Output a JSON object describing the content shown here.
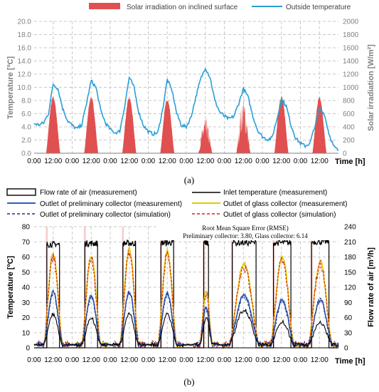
{
  "chart_data": [
    {
      "type": "line",
      "panel_label": "(a)",
      "legend": [
        "Solar irradiation on inclined surface",
        "Outside temperature"
      ],
      "ylabel": "Temperature [ºC]",
      "y2label": "Solar irradiation [W/m²]",
      "xlabel": "Time [h]",
      "x_tick_labels": [
        "0:00",
        "12:00",
        "0:00",
        "12:00",
        "0:00",
        "12:00",
        "0:00",
        "12:00",
        "0:00",
        "12:00",
        "0:00",
        "12:00",
        "0:00",
        "12:00",
        "0:00",
        "12:00"
      ],
      "y_ticks": [
        "0.0",
        "2.0",
        "4.0",
        "6.0",
        "8.0",
        "10.0",
        "12.0",
        "14.0",
        "16.0",
        "18.0",
        "20.0"
      ],
      "y2_ticks": [
        "0",
        "200",
        "400",
        "600",
        "800",
        "1000",
        "1200",
        "1400",
        "1600",
        "1800",
        "2000"
      ],
      "ylim": [
        0,
        20
      ],
      "y2lim": [
        0,
        2000
      ],
      "x_hours": [
        0,
        192
      ],
      "colors": {
        "solar": "#e05050",
        "temperature": "#2a9fd6"
      },
      "series": [
        {
          "name": "Solar irradiation on inclined surface",
          "axis": "right",
          "peaks": [
            {
              "hour": 12,
              "peak": 870,
              "width": 4.5,
              "ragged": false
            },
            {
              "hour": 36,
              "peak": 870,
              "width": 4.5,
              "ragged": false
            },
            {
              "hour": 60,
              "peak": 860,
              "width": 4.5,
              "ragged": false
            },
            {
              "hour": 84,
              "peak": 840,
              "width": 4.5,
              "ragged": false
            },
            {
              "hour": 108,
              "peak": 550,
              "width": 4.5,
              "ragged": true
            },
            {
              "hour": 132,
              "peak": 880,
              "width": 4.5,
              "ragged": true
            },
            {
              "hour": 156,
              "peak": 880,
              "width": 4.5,
              "ragged": false
            },
            {
              "hour": 180,
              "peak": 860,
              "width": 4.5,
              "ragged": false
            }
          ]
        },
        {
          "name": "Outside temperature",
          "axis": "left",
          "points": [
            [
              0,
              4.5
            ],
            [
              3,
              4.3
            ],
            [
              6,
              4.6
            ],
            [
              9,
              6.0
            ],
            [
              12,
              10.5
            ],
            [
              15,
              9.8
            ],
            [
              18,
              6.8
            ],
            [
              21,
              5.0
            ],
            [
              24,
              4.2
            ],
            [
              27,
              3.7
            ],
            [
              30,
              4.3
            ],
            [
              33,
              7.5
            ],
            [
              36,
              11.0
            ],
            [
              39,
              10.0
            ],
            [
              42,
              6.5
            ],
            [
              45,
              4.6
            ],
            [
              48,
              3.6
            ],
            [
              51,
              3.1
            ],
            [
              54,
              3.3
            ],
            [
              57,
              7.0
            ],
            [
              60,
              11.5
            ],
            [
              63,
              10.0
            ],
            [
              66,
              6.2
            ],
            [
              69,
              4.2
            ],
            [
              72,
              3.3
            ],
            [
              75,
              2.9
            ],
            [
              78,
              3.1
            ],
            [
              81,
              6.5
            ],
            [
              84,
              11.2
            ],
            [
              87,
              9.5
            ],
            [
              90,
              6.0
            ],
            [
              93,
              4.2
            ],
            [
              96,
              4.0
            ],
            [
              99,
              5.5
            ],
            [
              102,
              8.5
            ],
            [
              105,
              11.2
            ],
            [
              108,
              13.0
            ],
            [
              111,
              11.5
            ],
            [
              114,
              8.0
            ],
            [
              117,
              6.3
            ],
            [
              120,
              5.6
            ],
            [
              123,
              5.2
            ],
            [
              126,
              5.6
            ],
            [
              129,
              7.5
            ],
            [
              132,
              9.8
            ],
            [
              135,
              8.5
            ],
            [
              138,
              5.6
            ],
            [
              141,
              3.5
            ],
            [
              144,
              2.5
            ],
            [
              147,
              2.1
            ],
            [
              150,
              2.3
            ],
            [
              153,
              5.0
            ],
            [
              156,
              8.2
            ],
            [
              159,
              7.2
            ],
            [
              162,
              4.3
            ],
            [
              165,
              2.3
            ],
            [
              168,
              1.5
            ],
            [
              171,
              1.1
            ],
            [
              174,
              1.5
            ],
            [
              177,
              4.0
            ],
            [
              180,
              6.8
            ],
            [
              183,
              6.0
            ],
            [
              186,
              3.0
            ],
            [
              189,
              1.0
            ],
            [
              192,
              0.4
            ]
          ]
        }
      ]
    },
    {
      "type": "line",
      "panel_label": "(b)",
      "legend": [
        "Flow rate of air (measurement)",
        "Inlet temperature (measurement)",
        "Outlet of preliminary collector (measurement)",
        "Outlet of glass collector (measurement)",
        "Outlet of preliminary collector (simulation)",
        "Outlet of glass collector (simulation)"
      ],
      "annotation_title": "Root Mean Square Error (RMSE)",
      "annotation_values": "Preliminary collector: 3.80, Glass collector: 6.14",
      "ylabel": "Temperature [ºC]",
      "y2label": "Flow rate of air [m³/h]",
      "xlabel": "Time [h]",
      "x_tick_labels": [
        "0:00",
        "12:00",
        "0:00",
        "12:00",
        "0:00",
        "12:00",
        "0:00",
        "12:00",
        "0:00",
        "12:00",
        "0:00",
        "12:00",
        "0:00",
        "12:00",
        "0:00",
        "12:00"
      ],
      "y_ticks": [
        "0",
        "10",
        "20",
        "30",
        "40",
        "50",
        "60",
        "70",
        "80"
      ],
      "y2_ticks": [
        "0",
        "30",
        "60",
        "90",
        "120",
        "150",
        "180",
        "210",
        "240"
      ],
      "ylim": [
        0,
        80
      ],
      "y2lim": [
        0,
        240
      ],
      "x_hours": [
        0,
        192
      ],
      "colors": {
        "flow": "#000000",
        "inlet": "#000000",
        "prelim_meas": "#2f5fc4",
        "glass_meas": "#e6c800",
        "prelim_sim": "#1f2f80",
        "glass_sim": "#d42020",
        "bar_shade": "#f4b6b6"
      },
      "days": [
        {
          "hour": 12,
          "flow_on": 205,
          "inlet": 22,
          "prelim": 37,
          "glass": 62,
          "start": 8,
          "end": 16
        },
        {
          "hour": 36,
          "flow_on": 207,
          "inlet": 20,
          "prelim": 34,
          "glass": 61,
          "start": 32,
          "end": 40
        },
        {
          "hour": 60,
          "flow_on": 207,
          "inlet": 22,
          "prelim": 37,
          "glass": 65,
          "start": 56,
          "end": 64
        },
        {
          "hour": 84,
          "flow_on": 208,
          "inlet": 22,
          "prelim": 36,
          "glass": 64,
          "start": 80,
          "end": 88
        },
        {
          "hour": 108,
          "flow_on": 208,
          "inlet": 20,
          "prelim": 27,
          "glass": 38,
          "start": 107,
          "end": 110
        },
        {
          "hour": 132,
          "flow_on": 208,
          "inlet": 25,
          "prelim": 35,
          "glass": 55,
          "start": 125,
          "end": 140
        },
        {
          "hour": 156,
          "flow_on": 208,
          "inlet": 17,
          "prelim": 32,
          "glass": 60,
          "start": 151,
          "end": 162
        },
        {
          "hour": 180,
          "flow_on": 210,
          "inlet": 17,
          "prelim": 32,
          "glass": 57,
          "start": 175,
          "end": 186
        }
      ],
      "night_temperature": 2
    }
  ]
}
